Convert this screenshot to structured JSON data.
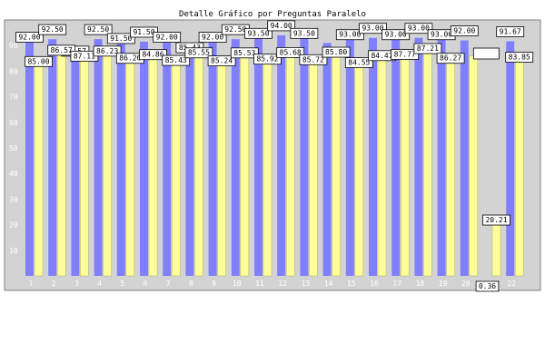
{
  "chart_data": {
    "type": "bar",
    "title": "Detalle Gráfico por Preguntas Paralelo",
    "xlabel": "",
    "ylabel": "",
    "ylim": [
      0,
      100
    ],
    "yticks": [
      10,
      20,
      30,
      40,
      50,
      60,
      70,
      80,
      90
    ],
    "grid": false,
    "categories": [
      "1",
      "2",
      "3",
      "4",
      "5",
      "6",
      "7",
      "8",
      "9",
      "10",
      "11",
      "12",
      "13",
      "14",
      "15",
      "16",
      "17",
      "18",
      "19",
      "20",
      "21",
      "22"
    ],
    "series": [
      {
        "color": "#8080ff",
        "values": [
          92.0,
          92.5,
          86.57,
          92.5,
          91.5,
          91.5,
          92.0,
          85.43,
          92.0,
          92.5,
          93.5,
          94.0,
          93.5,
          91.0,
          93.0,
          93.0,
          93.0,
          93.0,
          93.0,
          92.0,
          0,
          91.67
        ],
        "labels": [
          "92.00",
          "92.50",
          "86.57",
          "92.50",
          "91.50",
          "91.50",
          "92.00",
          "85.43",
          "92.00",
          "92.50",
          "93.50",
          "94.00",
          "93.50",
          "",
          "93.00",
          "93.00",
          "93.00",
          "93.00",
          "93.00",
          "92.00",
          "",
          "91.67"
        ]
      },
      {
        "color": "#ffff99",
        "values": [
          85.0,
          86.57,
          87.11,
          86.23,
          86.26,
          84.86,
          85.43,
          85.55,
          85.24,
          85.53,
          85.92,
          85.68,
          85.72,
          85.8,
          84.55,
          84.47,
          87.77,
          87.21,
          86.27,
          86.0,
          20.21,
          83.85
        ],
        "labels": [
          "85.00",
          "86.57",
          "87.11",
          "86.23",
          "86.26",
          "84.86",
          "85.43",
          "85.55",
          "85.24",
          "85.53",
          "85.92",
          "85.68",
          "85.72",
          "85.80",
          "84.55",
          "84.47",
          "87.77",
          "87.21",
          "86.27",
          "",
          "20.21",
          "83.85"
        ]
      }
    ],
    "extra_labels": [
      "0.36"
    ]
  }
}
